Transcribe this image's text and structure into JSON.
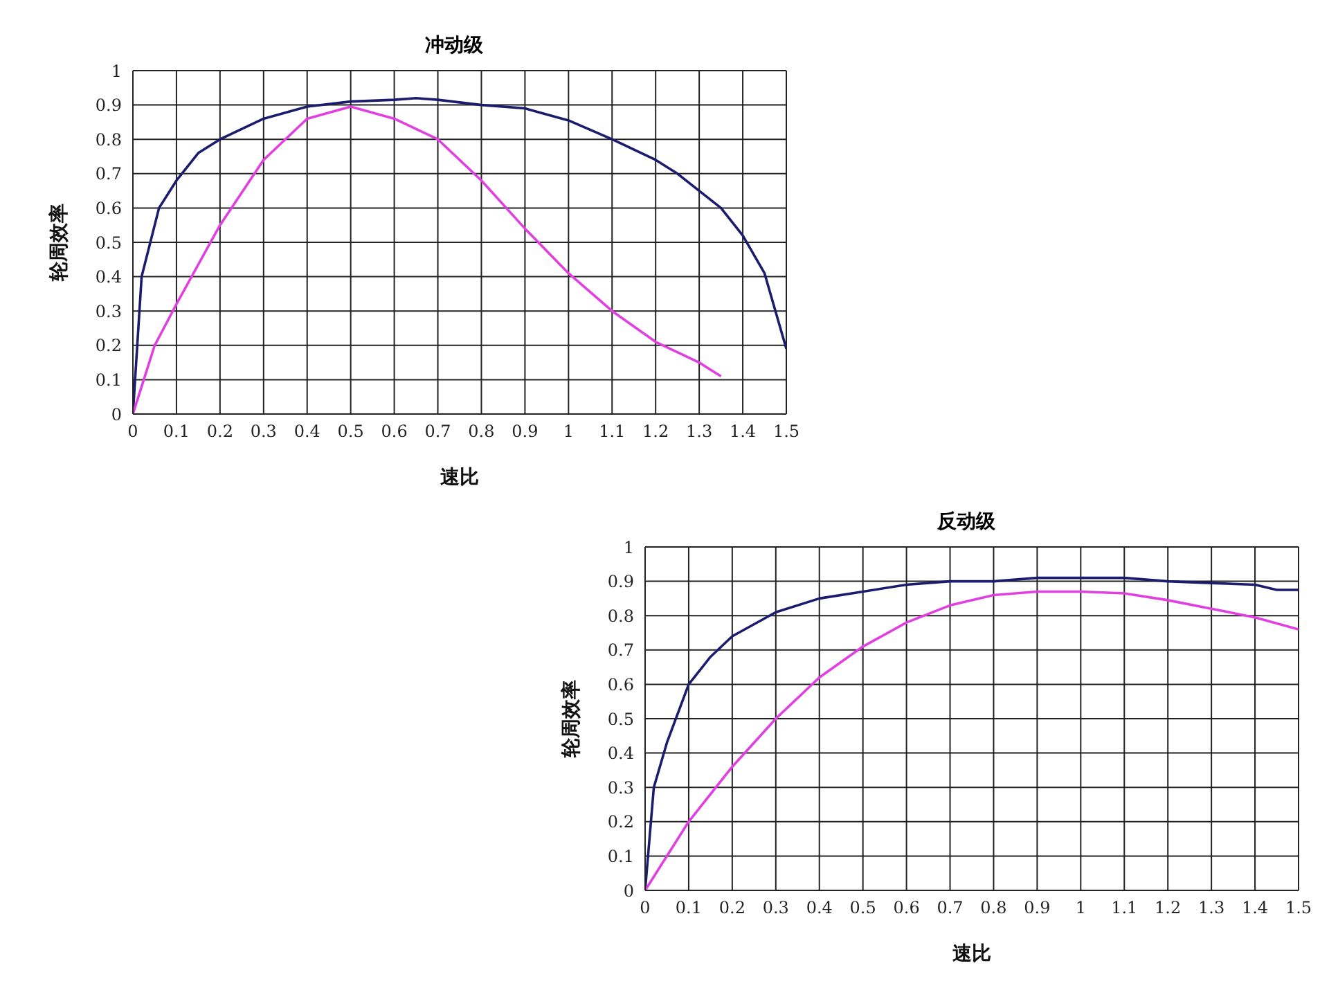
{
  "chart_data": [
    {
      "type": "line",
      "title": "冲动级",
      "xlabel": "速比",
      "ylabel": "轮周效率",
      "xlim": [
        0,
        1.5
      ],
      "xticks": [
        0,
        0.1,
        0.2,
        0.3,
        0.4,
        0.5,
        0.6,
        0.7,
        0.8,
        0.9,
        1,
        1.1,
        1.2,
        1.3,
        1.4,
        1.5
      ],
      "ylim": [
        0,
        1
      ],
      "yticks": [
        0,
        0.1,
        0.2,
        0.3,
        0.4,
        0.5,
        0.6,
        0.7,
        0.8,
        0.9,
        1
      ],
      "grid": true,
      "marker": "none",
      "line_style": "solid",
      "series": [
        {
          "color": "#1c1c6e",
          "x": [
            0,
            0.01,
            0.02,
            0.04,
            0.06,
            0.1,
            0.15,
            0.2,
            0.3,
            0.4,
            0.5,
            0.6,
            0.65,
            0.7,
            0.8,
            0.9,
            1,
            1.1,
            1.2,
            1.25,
            1.3,
            1.35,
            1.4,
            1.45,
            1.5
          ],
          "values": [
            0,
            0.2,
            0.4,
            0.5,
            0.6,
            0.68,
            0.76,
            0.8,
            0.86,
            0.895,
            0.91,
            0.915,
            0.92,
            0.915,
            0.9,
            0.89,
            0.855,
            0.8,
            0.74,
            0.7,
            0.65,
            0.6,
            0.52,
            0.41,
            0.19
          ]
        },
        {
          "color": "#e040e0",
          "x": [
            0,
            0.05,
            0.1,
            0.2,
            0.3,
            0.4,
            0.5,
            0.6,
            0.7,
            0.8,
            0.9,
            1,
            1.1,
            1.2,
            1.3,
            1.35
          ],
          "values": [
            0,
            0.2,
            0.32,
            0.55,
            0.74,
            0.86,
            0.895,
            0.86,
            0.8,
            0.68,
            0.54,
            0.41,
            0.3,
            0.21,
            0.15,
            0.11
          ]
        }
      ]
    },
    {
      "type": "line",
      "title": "反动级",
      "xlabel": "速比",
      "ylabel": "轮周效率",
      "xlim": [
        0,
        1.5
      ],
      "xticks": [
        0,
        0.1,
        0.2,
        0.3,
        0.4,
        0.5,
        0.6,
        0.7,
        0.8,
        0.9,
        1,
        1.1,
        1.2,
        1.3,
        1.4,
        1.5
      ],
      "ylim": [
        0,
        1
      ],
      "yticks": [
        0,
        0.1,
        0.2,
        0.3,
        0.4,
        0.5,
        0.6,
        0.7,
        0.8,
        0.9,
        1
      ],
      "grid": true,
      "marker": "none",
      "line_style": "solid",
      "series": [
        {
          "color": "#1c1c6e",
          "x": [
            0,
            0.01,
            0.02,
            0.05,
            0.1,
            0.15,
            0.2,
            0.3,
            0.4,
            0.5,
            0.6,
            0.7,
            0.8,
            0.9,
            1,
            1.1,
            1.2,
            1.3,
            1.4,
            1.45,
            1.5
          ],
          "values": [
            0,
            0.15,
            0.3,
            0.43,
            0.6,
            0.68,
            0.74,
            0.81,
            0.85,
            0.87,
            0.89,
            0.9,
            0.9,
            0.91,
            0.91,
            0.91,
            0.9,
            0.895,
            0.89,
            0.875,
            0.875
          ]
        },
        {
          "color": "#e040e0",
          "x": [
            0,
            0.1,
            0.2,
            0.3,
            0.4,
            0.5,
            0.6,
            0.7,
            0.8,
            0.9,
            1,
            1.1,
            1.2,
            1.3,
            1.4,
            1.5
          ],
          "values": [
            0,
            0.2,
            0.36,
            0.5,
            0.62,
            0.71,
            0.78,
            0.83,
            0.86,
            0.87,
            0.87,
            0.865,
            0.845,
            0.82,
            0.795,
            0.76
          ]
        }
      ]
    }
  ]
}
